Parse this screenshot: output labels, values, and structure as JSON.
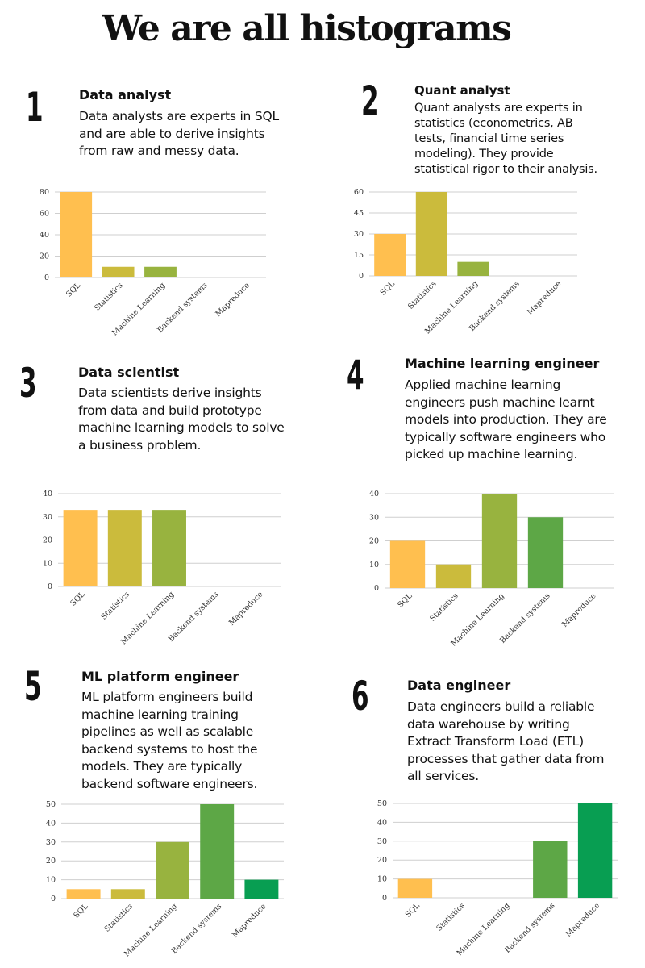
{
  "title": "We are all histograms",
  "colors": {
    "SQL": "#ffbf4f",
    "Statistics": "#cbbb3c",
    "Machine Learning": "#98b33f",
    "Backend systems": "#5da746",
    "Mapreduce": "#089e52"
  },
  "panels": [
    {
      "number": "1",
      "role": "Data analyst",
      "description": "Data analysts are experts in SQL and are able to derive insights from raw and messy data."
    },
    {
      "number": "2",
      "role": "Quant analyst",
      "description": "Quant analysts are experts in statistics (econometrics, AB tests, financial time series modeling). They provide statistical rigor to their analysis."
    },
    {
      "number": "3",
      "role": "Data scientist",
      "description": "Data scientists derive insights from data and build prototype machine learning models to solve a business problem."
    },
    {
      "number": "4",
      "role": "Machine learning engineer",
      "description": "Applied machine learning engineers push machine learnt models into production. They are typically software engineers who picked up machine learning."
    },
    {
      "number": "5",
      "role": "ML platform engineer",
      "description": "ML platform engineers build machine learning training pipelines as well as scalable backend systems to host the models. They are typically backend software engineers."
    },
    {
      "number": "6",
      "role": "Data engineer",
      "description": "Data engineers build a reliable data warehouse by writing Extract Transform Load (ETL) processes that gather data from all services."
    }
  ],
  "chart_data": [
    {
      "type": "bar",
      "title": "Data analyst",
      "categories": [
        "SQL",
        "Statistics",
        "Machine Learning",
        "Backend systems",
        "Mapreduce"
      ],
      "values": [
        80,
        10,
        10,
        0,
        0
      ],
      "ylim": [
        0,
        80
      ],
      "yticks": [
        0,
        20,
        40,
        60,
        80
      ],
      "xlabel": "",
      "ylabel": "",
      "grid": true
    },
    {
      "type": "bar",
      "title": "Quant analyst",
      "categories": [
        "SQL",
        "Statistics",
        "Machine Learning",
        "Backend systems",
        "Mapreduce"
      ],
      "values": [
        30,
        60,
        10,
        0,
        0
      ],
      "ylim": [
        0,
        60
      ],
      "yticks": [
        0,
        15,
        30,
        45,
        60
      ],
      "xlabel": "",
      "ylabel": "",
      "grid": true
    },
    {
      "type": "bar",
      "title": "Data scientist",
      "categories": [
        "SQL",
        "Statistics",
        "Machine Learning",
        "Backend systems",
        "Mapreduce"
      ],
      "values": [
        33,
        33,
        33,
        0,
        0
      ],
      "ylim": [
        0,
        40
      ],
      "yticks": [
        0,
        10,
        20,
        30,
        40
      ],
      "xlabel": "",
      "ylabel": "",
      "grid": true
    },
    {
      "type": "bar",
      "title": "Machine learning engineer",
      "categories": [
        "SQL",
        "Statistics",
        "Machine Learning",
        "Backend systems",
        "Mapreduce"
      ],
      "values": [
        20,
        10,
        40,
        30,
        0
      ],
      "ylim": [
        0,
        40
      ],
      "yticks": [
        0,
        10,
        20,
        30,
        40
      ],
      "xlabel": "",
      "ylabel": "",
      "grid": true
    },
    {
      "type": "bar",
      "title": "ML platform engineer",
      "categories": [
        "SQL",
        "Statistics",
        "Machine Learning",
        "Backend systems",
        "Mapreduce"
      ],
      "values": [
        5,
        5,
        30,
        50,
        10
      ],
      "ylim": [
        0,
        50
      ],
      "yticks": [
        0,
        10,
        20,
        30,
        40,
        50
      ],
      "xlabel": "",
      "ylabel": "",
      "grid": true
    },
    {
      "type": "bar",
      "title": "Data engineer",
      "categories": [
        "SQL",
        "Statistics",
        "Machine Learning",
        "Backend systems",
        "Mapreduce"
      ],
      "values": [
        10,
        0,
        0,
        30,
        50
      ],
      "ylim": [
        0,
        50
      ],
      "yticks": [
        0,
        10,
        20,
        30,
        40,
        50
      ],
      "xlabel": "",
      "ylabel": "",
      "grid": true
    }
  ]
}
